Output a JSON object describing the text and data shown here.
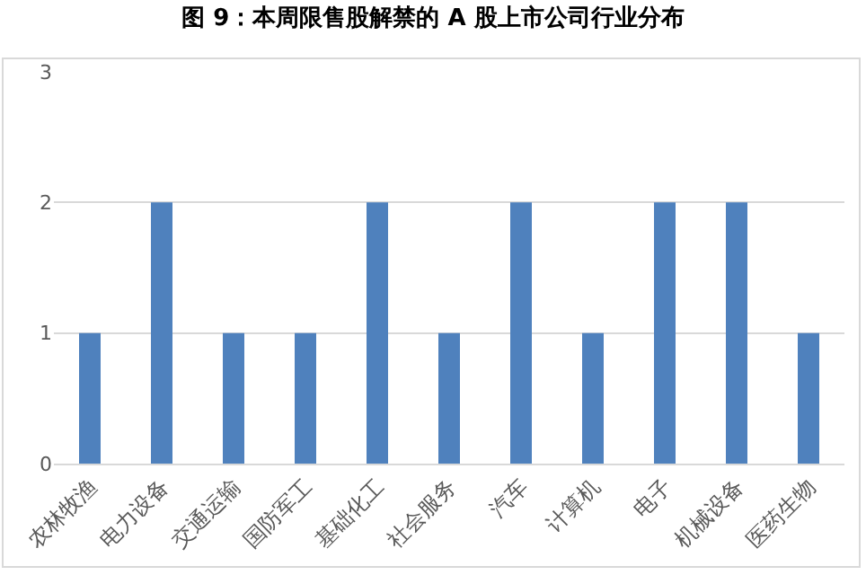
{
  "chart_data": {
    "type": "bar",
    "title": "图 9：本周限售股解禁的 A 股上市公司行业分布",
    "categories": [
      "农林牧渔",
      "电力设备",
      "交通运输",
      "国防军工",
      "基础化工",
      "社会服务",
      "汽车",
      "计算机",
      "电子",
      "机械设备",
      "医药生物"
    ],
    "values": [
      1,
      2,
      1,
      1,
      2,
      1,
      2,
      1,
      2,
      2,
      1
    ],
    "color": "#4f81bd",
    "ylim": [
      0,
      3
    ],
    "yticks": [
      0,
      1,
      2,
      3
    ],
    "grid": "y"
  }
}
